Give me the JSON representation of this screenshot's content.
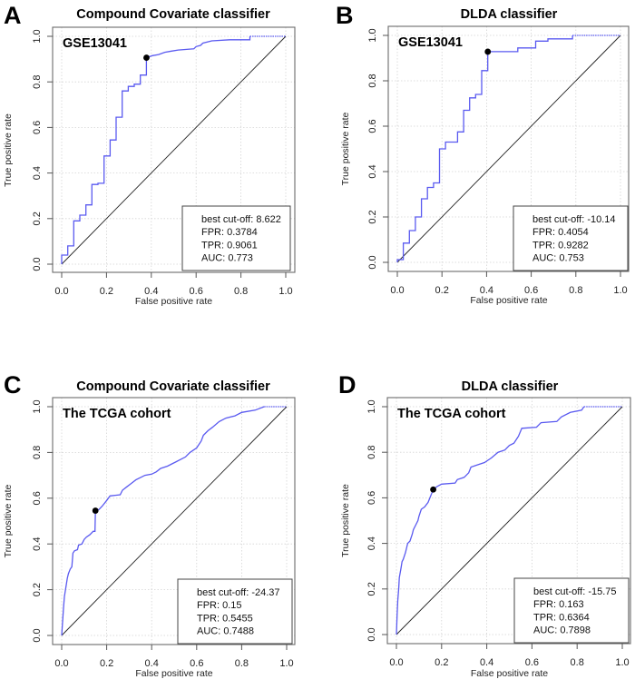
{
  "figure": {
    "panels": [
      "A",
      "B",
      "C",
      "D"
    ]
  },
  "chart_data": [
    {
      "type": "line",
      "panel_letter": "A",
      "title": "Compound Covariate classifier",
      "subset_label": "GSE13041",
      "xlabel": "False positive rate",
      "ylabel": "True positive rate",
      "xlim": [
        0,
        1
      ],
      "ylim": [
        0,
        1
      ],
      "xticks": [
        "0.0",
        "0.2",
        "0.4",
        "0.6",
        "0.8",
        "1.0"
      ],
      "yticks": [
        "0.0",
        "0.2",
        "0.4",
        "0.6",
        "0.8",
        "1.0"
      ],
      "grid": true,
      "legend_position": "bottom-right",
      "legend_lines": [
        "best cut-off: 8.622",
        "FPR: 0.3784",
        "TPR: 0.9061",
        "AUC: 0.773"
      ],
      "best_point": {
        "fpr": 0.3784,
        "tpr": 0.9061
      },
      "series": [
        {
          "name": "ROC",
          "color": "#5a5af0",
          "points": [
            [
              0,
              0
            ],
            [
              0,
              0.04
            ],
            [
              0.027,
              0.04
            ],
            [
              0.027,
              0.08
            ],
            [
              0.054,
              0.08
            ],
            [
              0.054,
              0.19
            ],
            [
              0.081,
              0.19
            ],
            [
              0.081,
              0.215
            ],
            [
              0.108,
              0.215
            ],
            [
              0.108,
              0.26
            ],
            [
              0.135,
              0.26
            ],
            [
              0.135,
              0.35
            ],
            [
              0.162,
              0.35
            ],
            [
              0.162,
              0.355
            ],
            [
              0.189,
              0.355
            ],
            [
              0.189,
              0.475
            ],
            [
              0.216,
              0.475
            ],
            [
              0.216,
              0.545
            ],
            [
              0.243,
              0.545
            ],
            [
              0.243,
              0.645
            ],
            [
              0.27,
              0.645
            ],
            [
              0.27,
              0.76
            ],
            [
              0.297,
              0.76
            ],
            [
              0.297,
              0.78
            ],
            [
              0.324,
              0.78
            ],
            [
              0.324,
              0.79
            ],
            [
              0.351,
              0.79
            ],
            [
              0.351,
              0.83
            ],
            [
              0.378,
              0.83
            ],
            [
              0.378,
              0.9061
            ],
            [
              0.405,
              0.915
            ],
            [
              0.432,
              0.92
            ],
            [
              0.46,
              0.93
            ],
            [
              0.49,
              0.935
            ],
            [
              0.52,
              0.94
            ],
            [
              0.59,
              0.945
            ],
            [
              0.6,
              0.955
            ],
            [
              0.62,
              0.96
            ],
            [
              0.63,
              0.97
            ],
            [
              0.67,
              0.98
            ],
            [
              0.75,
              0.985
            ],
            [
              0.84,
              0.985
            ],
            [
              0.84,
              1.0
            ]
          ],
          "tail": [
            [
              0.84,
              1.0
            ],
            [
              1.0,
              1.0
            ]
          ]
        },
        {
          "name": "chance",
          "color": "#222222",
          "points": [
            [
              0,
              0
            ],
            [
              1,
              1
            ]
          ]
        }
      ]
    },
    {
      "type": "line",
      "panel_letter": "B",
      "title": "DLDA classifier",
      "subset_label": "GSE13041",
      "xlabel": "False positive rate",
      "ylabel": "True positive rate",
      "xlim": [
        0,
        1
      ],
      "ylim": [
        0,
        1
      ],
      "xticks": [
        "0.0",
        "0.2",
        "0.4",
        "0.6",
        "0.8",
        "1.0"
      ],
      "yticks": [
        "0.0",
        "0.2",
        "0.4",
        "0.6",
        "0.8",
        "1.0"
      ],
      "grid": true,
      "legend_position": "bottom-right",
      "legend_lines": [
        "best cut-off: -10.14",
        "FPR: 0.4054",
        "TPR: 0.9282",
        "AUC: 0.753"
      ],
      "best_point": {
        "fpr": 0.4054,
        "tpr": 0.9282
      },
      "series": [
        {
          "name": "ROC",
          "color": "#5a5af0",
          "points": [
            [
              0,
              0
            ],
            [
              0,
              0.012
            ],
            [
              0.027,
              0.012
            ],
            [
              0.027,
              0.085
            ],
            [
              0.054,
              0.085
            ],
            [
              0.054,
              0.14
            ],
            [
              0.081,
              0.14
            ],
            [
              0.081,
              0.2
            ],
            [
              0.108,
              0.2
            ],
            [
              0.108,
              0.28
            ],
            [
              0.135,
              0.28
            ],
            [
              0.135,
              0.33
            ],
            [
              0.162,
              0.33
            ],
            [
              0.162,
              0.35
            ],
            [
              0.189,
              0.35
            ],
            [
              0.189,
              0.5
            ],
            [
              0.216,
              0.5
            ],
            [
              0.216,
              0.53
            ],
            [
              0.27,
              0.53
            ],
            [
              0.27,
              0.575
            ],
            [
              0.297,
              0.575
            ],
            [
              0.297,
              0.67
            ],
            [
              0.324,
              0.67
            ],
            [
              0.324,
              0.725
            ],
            [
              0.351,
              0.725
            ],
            [
              0.351,
              0.74
            ],
            [
              0.378,
              0.74
            ],
            [
              0.378,
              0.845
            ],
            [
              0.4054,
              0.845
            ],
            [
              0.4054,
              0.9282
            ],
            [
              0.54,
              0.9282
            ],
            [
              0.54,
              0.945
            ],
            [
              0.62,
              0.945
            ],
            [
              0.62,
              0.975
            ],
            [
              0.675,
              0.975
            ],
            [
              0.675,
              0.985
            ],
            [
              0.785,
              0.985
            ],
            [
              0.785,
              1.0
            ]
          ],
          "tail": [
            [
              0.785,
              1.0
            ],
            [
              1.0,
              1.0
            ]
          ]
        },
        {
          "name": "chance",
          "color": "#222222",
          "points": [
            [
              0,
              0
            ],
            [
              1,
              1
            ]
          ]
        }
      ]
    },
    {
      "type": "line",
      "panel_letter": "C",
      "title": "Compound Covariate classifier",
      "subset_label": "The TCGA cohort",
      "xlabel": "False positive rate",
      "ylabel": "True positive rate",
      "xlim": [
        0,
        1
      ],
      "ylim": [
        0,
        1
      ],
      "xticks": [
        "0.0",
        "0.2",
        "0.4",
        "0.6",
        "0.8",
        "1.0"
      ],
      "yticks": [
        "0.0",
        "0.2",
        "0.4",
        "0.6",
        "0.8",
        "1.0"
      ],
      "grid": true,
      "legend_position": "bottom-right",
      "legend_lines": [
        "best cut-off: -24.37",
        "FPR:  0.15",
        "TPR: 0.5455",
        "AUC: 0.7488"
      ],
      "best_point": {
        "fpr": 0.15,
        "tpr": 0.5455
      },
      "series": [
        {
          "name": "ROC",
          "color": "#5a5af0",
          "points": [
            [
              0,
              0
            ],
            [
              0.004,
              0.06
            ],
            [
              0.008,
              0.12
            ],
            [
              0.012,
              0.17
            ],
            [
              0.017,
              0.2
            ],
            [
              0.02,
              0.22
            ],
            [
              0.025,
              0.25
            ],
            [
              0.03,
              0.27
            ],
            [
              0.038,
              0.29
            ],
            [
              0.045,
              0.3
            ],
            [
              0.05,
              0.36
            ],
            [
              0.057,
              0.37
            ],
            [
              0.07,
              0.375
            ],
            [
              0.075,
              0.395
            ],
            [
              0.09,
              0.4
            ],
            [
              0.1,
              0.42
            ],
            [
              0.11,
              0.43
            ],
            [
              0.125,
              0.44
            ],
            [
              0.14,
              0.455
            ],
            [
              0.148,
              0.455
            ],
            [
              0.15,
              0.5455
            ],
            [
              0.165,
              0.55
            ],
            [
              0.18,
              0.565
            ],
            [
              0.2,
              0.59
            ],
            [
              0.215,
              0.61
            ],
            [
              0.26,
              0.615
            ],
            [
              0.27,
              0.635
            ],
            [
              0.29,
              0.65
            ],
            [
              0.31,
              0.665
            ],
            [
              0.33,
              0.68
            ],
            [
              0.35,
              0.69
            ],
            [
              0.37,
              0.7
            ],
            [
              0.4,
              0.705
            ],
            [
              0.42,
              0.715
            ],
            [
              0.44,
              0.73
            ],
            [
              0.47,
              0.74
            ],
            [
              0.49,
              0.75
            ],
            [
              0.51,
              0.76
            ],
            [
              0.55,
              0.78
            ],
            [
              0.57,
              0.8
            ],
            [
              0.6,
              0.82
            ],
            [
              0.62,
              0.85
            ],
            [
              0.63,
              0.875
            ],
            [
              0.65,
              0.895
            ],
            [
              0.67,
              0.91
            ],
            [
              0.7,
              0.935
            ],
            [
              0.73,
              0.95
            ],
            [
              0.77,
              0.96
            ],
            [
              0.8,
              0.975
            ],
            [
              0.86,
              0.985
            ],
            [
              0.9,
              1.0
            ]
          ],
          "tail": [
            [
              0.9,
              1.0
            ],
            [
              1.0,
              1.0
            ]
          ]
        },
        {
          "name": "chance",
          "color": "#222222",
          "points": [
            [
              0,
              0
            ],
            [
              1,
              1
            ]
          ]
        }
      ]
    },
    {
      "type": "line",
      "panel_letter": "D",
      "title": "DLDA classifier",
      "subset_label": "The TCGA cohort",
      "xlabel": "False positive rate",
      "ylabel": "True positive rate",
      "xlim": [
        0,
        1
      ],
      "ylim": [
        0,
        1
      ],
      "xticks": [
        "0.0",
        "0.2",
        "0.4",
        "0.6",
        "0.8",
        "1.0"
      ],
      "yticks": [
        "0.0",
        "0.2",
        "0.4",
        "0.6",
        "0.8",
        "1.0"
      ],
      "grid": true,
      "legend_position": "bottom-right",
      "legend_lines": [
        "best cut-off: -15.75",
        "FPR: 0.163",
        "TPR: 0.6364",
        "AUC: 0.7898"
      ],
      "best_point": {
        "fpr": 0.163,
        "tpr": 0.6364
      },
      "series": [
        {
          "name": "ROC",
          "color": "#5a5af0",
          "points": [
            [
              0,
              0
            ],
            [
              0.003,
              0.08
            ],
            [
              0.006,
              0.15
            ],
            [
              0.01,
              0.2
            ],
            [
              0.013,
              0.25
            ],
            [
              0.02,
              0.29
            ],
            [
              0.025,
              0.32
            ],
            [
              0.03,
              0.33
            ],
            [
              0.04,
              0.36
            ],
            [
              0.045,
              0.38
            ],
            [
              0.05,
              0.4
            ],
            [
              0.06,
              0.41
            ],
            [
              0.07,
              0.44
            ],
            [
              0.075,
              0.46
            ],
            [
              0.085,
              0.48
            ],
            [
              0.095,
              0.5
            ],
            [
              0.1,
              0.52
            ],
            [
              0.11,
              0.55
            ],
            [
              0.125,
              0.56
            ],
            [
              0.14,
              0.58
            ],
            [
              0.163,
              0.6364
            ],
            [
              0.18,
              0.65
            ],
            [
              0.2,
              0.66
            ],
            [
              0.26,
              0.665
            ],
            [
              0.27,
              0.68
            ],
            [
              0.3,
              0.69
            ],
            [
              0.32,
              0.71
            ],
            [
              0.33,
              0.735
            ],
            [
              0.36,
              0.745
            ],
            [
              0.39,
              0.755
            ],
            [
              0.42,
              0.775
            ],
            [
              0.45,
              0.8
            ],
            [
              0.48,
              0.81
            ],
            [
              0.5,
              0.83
            ],
            [
              0.52,
              0.84
            ],
            [
              0.54,
              0.87
            ],
            [
              0.555,
              0.905
            ],
            [
              0.62,
              0.91
            ],
            [
              0.64,
              0.93
            ],
            [
              0.71,
              0.935
            ],
            [
              0.73,
              0.955
            ],
            [
              0.77,
              0.975
            ],
            [
              0.82,
              0.985
            ],
            [
              0.83,
              1.0
            ]
          ],
          "tail": [
            [
              0.83,
              1.0
            ],
            [
              1.0,
              1.0
            ]
          ]
        },
        {
          "name": "chance",
          "color": "#222222",
          "points": [
            [
              0,
              0
            ],
            [
              1,
              1
            ]
          ]
        }
      ]
    }
  ]
}
